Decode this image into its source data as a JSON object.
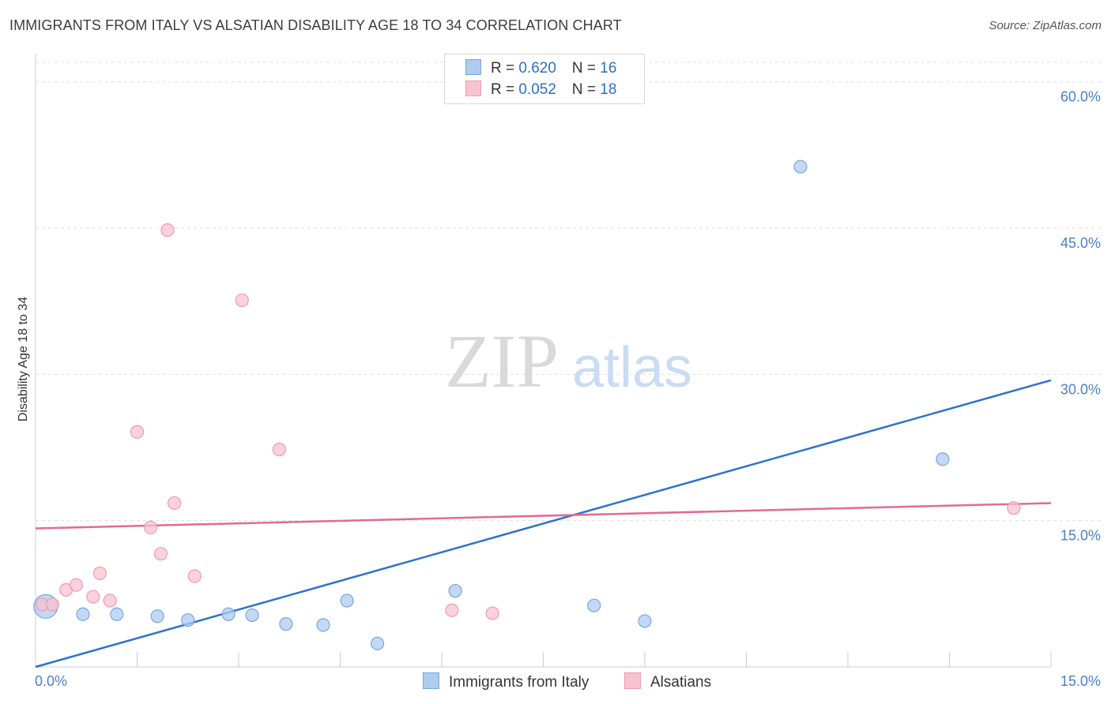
{
  "title": "IMMIGRANTS FROM ITALY VS ALSATIAN DISABILITY AGE 18 TO 34 CORRELATION CHART",
  "source": "Source: ZipAtlas.com",
  "watermark": {
    "zip": "ZIP",
    "atlas": "atlas"
  },
  "legend": {
    "row1": {
      "r_label": "R = ",
      "r_value": "0.620",
      "n_label": "N = ",
      "n_value": "16"
    },
    "row2": {
      "r_label": "R = ",
      "r_value": "0.052",
      "n_label": "N = ",
      "n_value": "18"
    }
  },
  "colors": {
    "italy_fill": "#aecbf0",
    "italy_stroke": "#7aa6de",
    "italy_line": "#2e72cc",
    "alsatian_fill": "#f7c3d2",
    "alsatian_stroke": "#ee9ab3",
    "alsatian_line": "#e06b94",
    "grid": "#dddddd",
    "tick_text": "#4a7fcc"
  },
  "chart_data": {
    "type": "scatter",
    "title": "IMMIGRANTS FROM ITALY VS ALSATIAN DISABILITY AGE 18 TO 34 CORRELATION CHART",
    "xlabel": "",
    "ylabel": "Disability Age 18 to 34",
    "xlim": [
      0,
      15
    ],
    "ylim": [
      0,
      62
    ],
    "x_tick_labels": [
      "0.0%",
      "15.0%"
    ],
    "y_ticks": [
      15,
      30,
      45,
      60
    ],
    "y_tick_labels": [
      "15.0%",
      "30.0%",
      "45.0%",
      "60.0%"
    ],
    "series": [
      {
        "name": "Immigrants from Italy",
        "color": "#aecbf0",
        "points": [
          {
            "x": 0.15,
            "y": 6.2,
            "big": true
          },
          {
            "x": 0.7,
            "y": 5.4
          },
          {
            "x": 1.2,
            "y": 5.4
          },
          {
            "x": 1.8,
            "y": 5.2
          },
          {
            "x": 2.25,
            "y": 4.8
          },
          {
            "x": 2.85,
            "y": 5.4
          },
          {
            "x": 3.2,
            "y": 5.3
          },
          {
            "x": 3.7,
            "y": 4.4
          },
          {
            "x": 4.25,
            "y": 4.3
          },
          {
            "x": 4.6,
            "y": 6.8
          },
          {
            "x": 5.05,
            "y": 2.4
          },
          {
            "x": 6.2,
            "y": 7.8
          },
          {
            "x": 8.25,
            "y": 6.3
          },
          {
            "x": 9.0,
            "y": 4.7
          },
          {
            "x": 11.3,
            "y": 51.3
          },
          {
            "x": 13.4,
            "y": 21.3
          }
        ],
        "trend": {
          "x0": 0.0,
          "y0": 0.0,
          "x1": 15.0,
          "y1": 29.4
        }
      },
      {
        "name": "Alsatians",
        "color": "#f7c3d2",
        "points": [
          {
            "x": 0.1,
            "y": 6.4
          },
          {
            "x": 0.25,
            "y": 6.4
          },
          {
            "x": 0.45,
            "y": 7.9
          },
          {
            "x": 0.6,
            "y": 8.4
          },
          {
            "x": 0.85,
            "y": 7.2
          },
          {
            "x": 0.95,
            "y": 9.6
          },
          {
            "x": 1.1,
            "y": 6.8
          },
          {
            "x": 1.5,
            "y": 24.1
          },
          {
            "x": 1.7,
            "y": 14.3
          },
          {
            "x": 1.85,
            "y": 11.6
          },
          {
            "x": 1.95,
            "y": 44.8
          },
          {
            "x": 2.05,
            "y": 16.8
          },
          {
            "x": 2.35,
            "y": 9.3
          },
          {
            "x": 3.05,
            "y": 37.6
          },
          {
            "x": 3.6,
            "y": 22.3
          },
          {
            "x": 6.15,
            "y": 5.8
          },
          {
            "x": 6.75,
            "y": 5.5
          },
          {
            "x": 14.45,
            "y": 16.3
          }
        ],
        "trend": {
          "x0": 0.0,
          "y0": 14.2,
          "x1": 15.0,
          "y1": 16.8
        }
      }
    ],
    "grid": true,
    "legend_position": "top-center"
  }
}
